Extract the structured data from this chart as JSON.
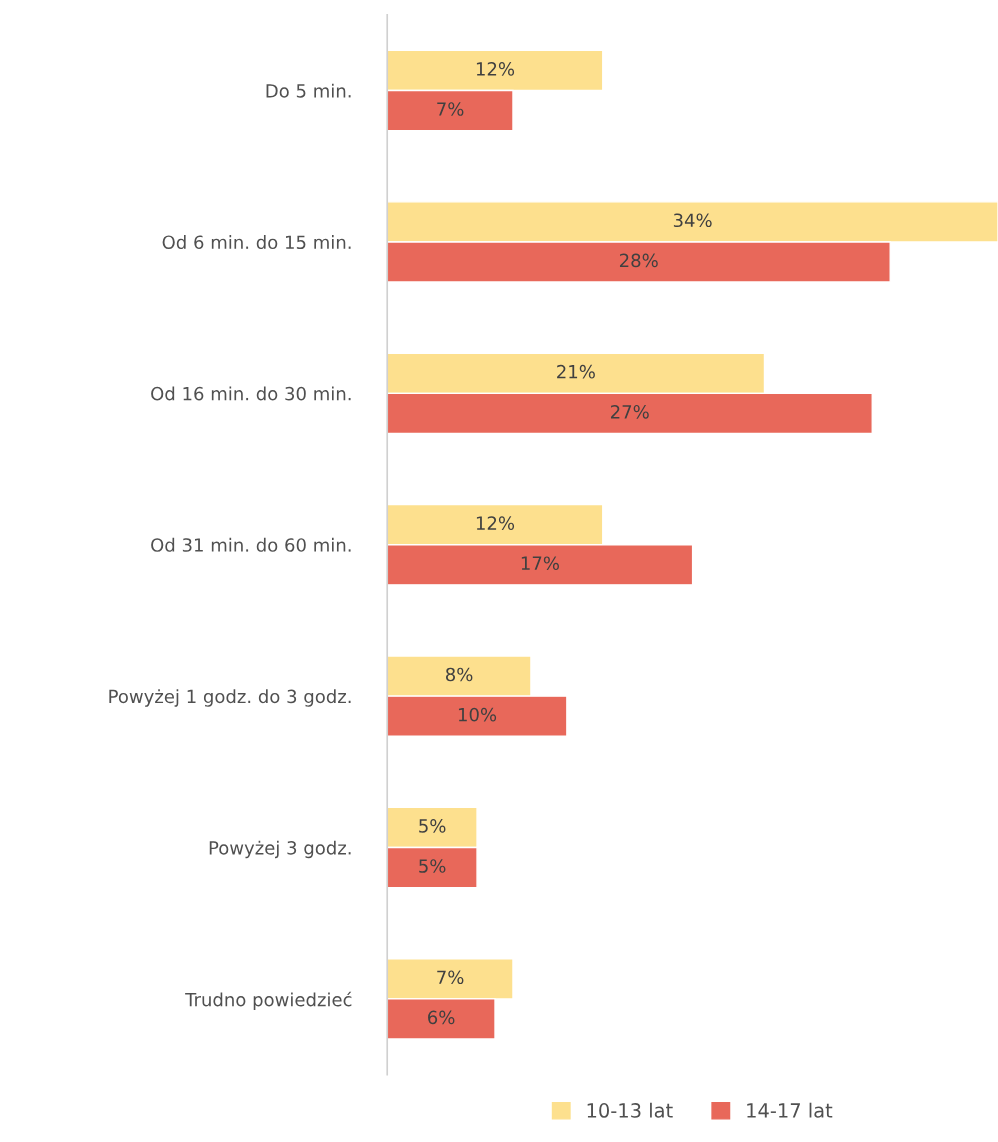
{
  "chart_data": {
    "type": "bar",
    "orientation": "horizontal",
    "categories": [
      "Do 5 min.",
      "Od 6 min. do 15 min.",
      "Od 16 min. do 30 min.",
      "Od 31 min. do 60 min.",
      "Powyżej 1 godz. do 3 godz.",
      "Powyżej 3 godz.",
      "Trudno powiedzieć"
    ],
    "series": [
      {
        "name": "10-13 lat",
        "color": "#fde08e",
        "values": [
          12,
          34,
          21,
          12,
          8,
          5,
          7
        ],
        "value_labels": [
          "12%",
          "34%",
          "21%",
          "12%",
          "8%",
          "5%",
          "7%"
        ]
      },
      {
        "name": "14-17 lat",
        "color": "#e8685a",
        "values": [
          7,
          28,
          27,
          17,
          10,
          5,
          6
        ],
        "value_labels": [
          "7%",
          "28%",
          "27%",
          "17%",
          "10%",
          "5%",
          "6%"
        ]
      }
    ],
    "legend": "bottom",
    "grid": false
  }
}
